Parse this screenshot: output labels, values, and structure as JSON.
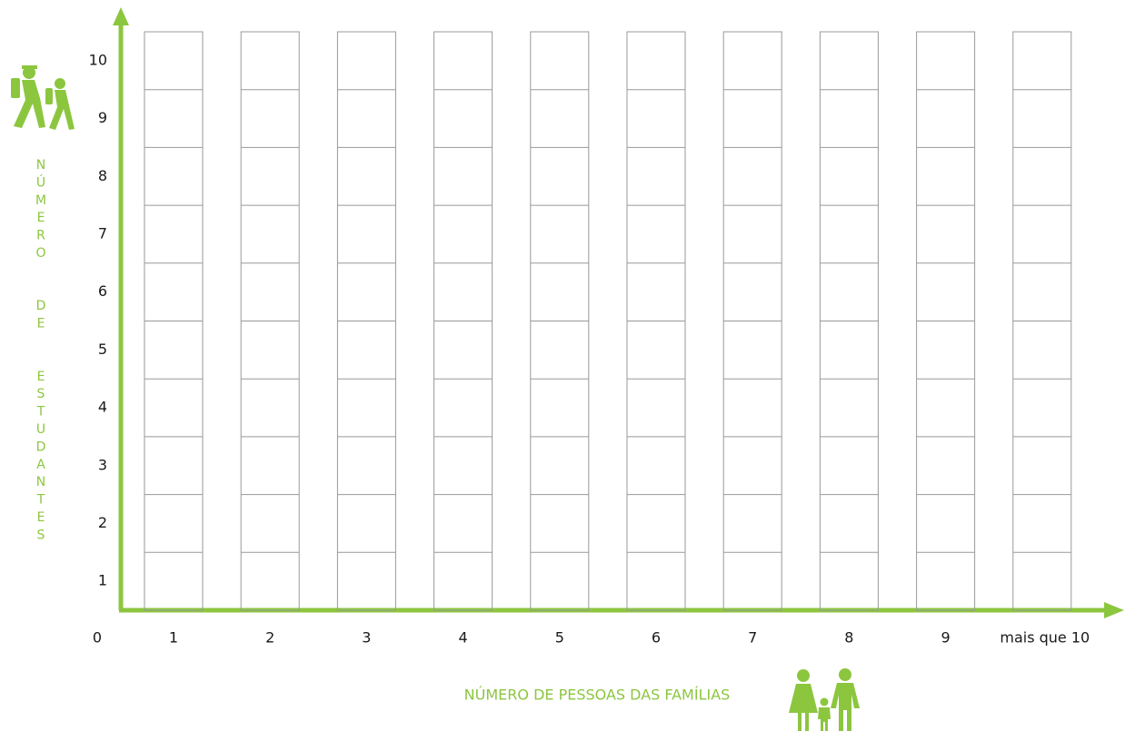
{
  "y_axis": {
    "label": "NÚMERO  DE  ESTUDANTES",
    "ticks": [
      "1",
      "2",
      "3",
      "4",
      "5",
      "6",
      "7",
      "8",
      "9",
      "10"
    ]
  },
  "x_axis": {
    "label": "NÚMERO DE PESSOAS DAS FAMÍLIAS",
    "origin": "0",
    "ticks": [
      "1",
      "2",
      "3",
      "4",
      "5",
      "6",
      "7",
      "8",
      "9",
      "mais que 10"
    ]
  }
}
